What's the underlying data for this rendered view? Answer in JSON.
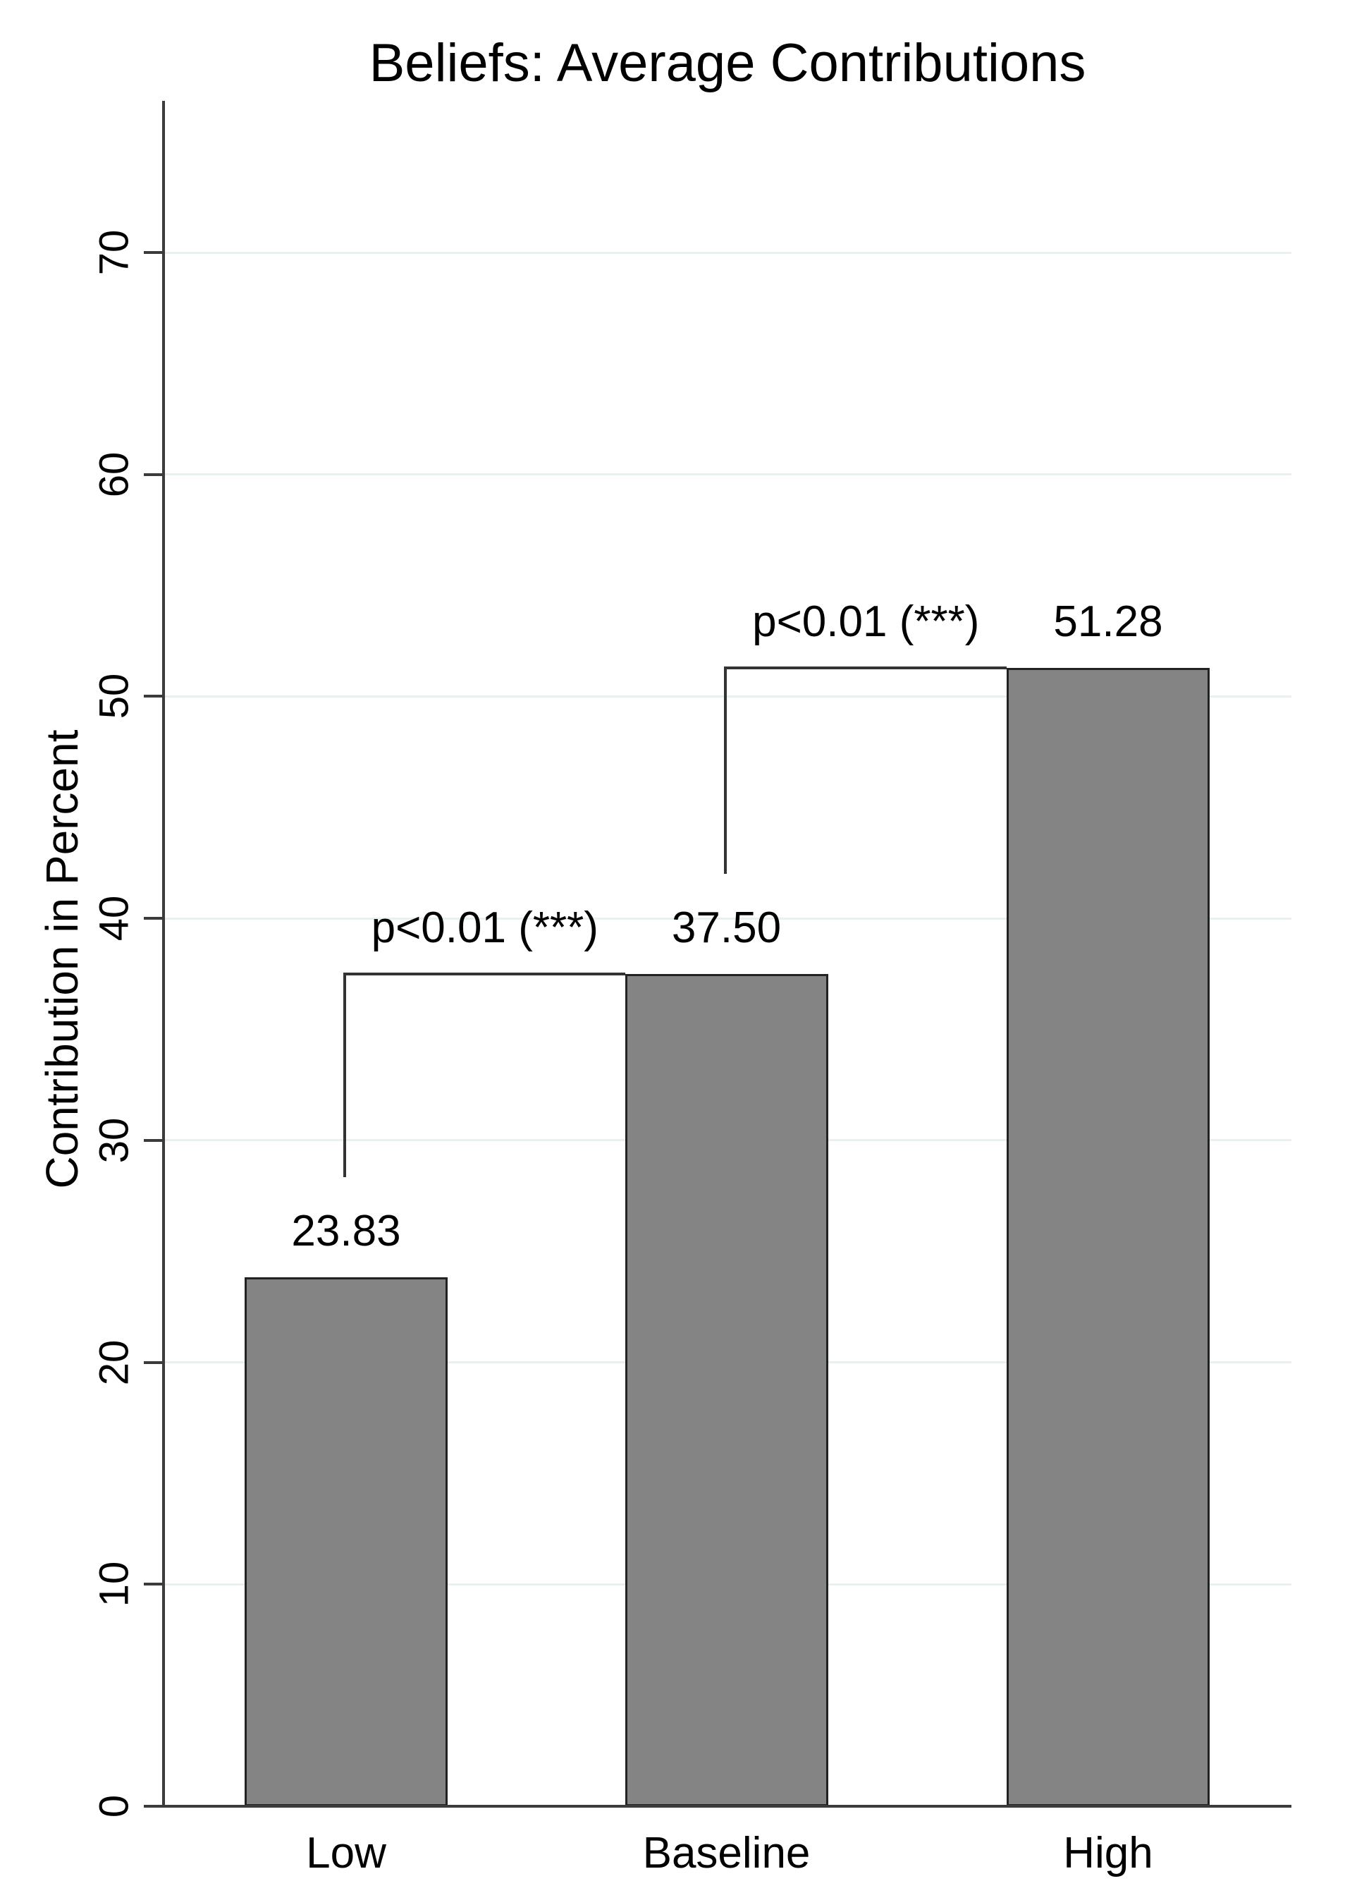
{
  "chart_data": {
    "type": "bar",
    "title": "Beliefs: Average Contributions",
    "ylabel": "Contribution in Percent",
    "xlabel": "",
    "categories": [
      "Low",
      "Baseline",
      "High"
    ],
    "values": [
      23.83,
      37.5,
      51.28
    ],
    "value_labels": [
      "23.83",
      "37.50",
      "51.28"
    ],
    "yticks": [
      0,
      10,
      20,
      30,
      40,
      50,
      60,
      70
    ],
    "ylim": [
      0,
      76.8
    ],
    "grid": true,
    "legend": "none",
    "annotations": [
      {
        "label": "p<0.01 (***)",
        "between": [
          "Low",
          "Baseline"
        ]
      },
      {
        "label": "p<0.01 (***)",
        "between": [
          "Baseline",
          "High"
        ]
      }
    ],
    "colors": {
      "bar_fill": "#848484",
      "bar_border": "#222222",
      "axis": "#3b3b3b",
      "gridline": "#e8f1f2",
      "bracket": "#333333",
      "text": "#000000",
      "background": "#ffffff"
    }
  }
}
